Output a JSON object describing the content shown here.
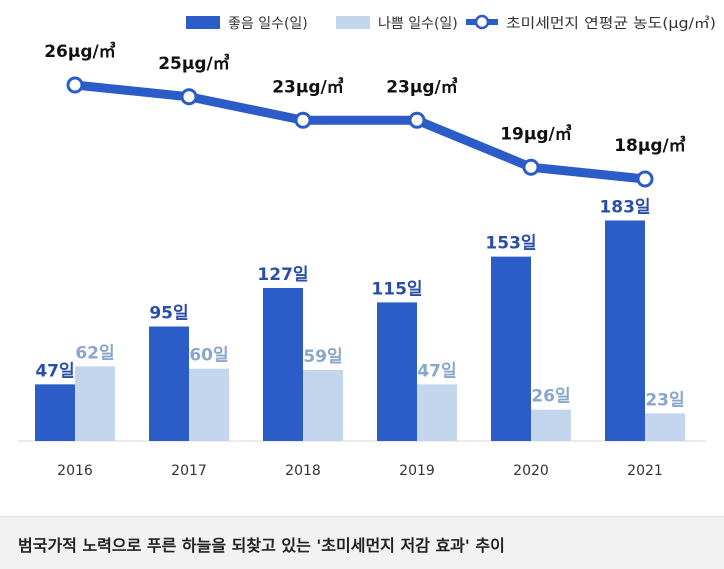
{
  "caption": "범국가적 노력으로 푸른 하늘을 되찾고 있는 '초미세먼지 저감 효과' 추이",
  "legend": {
    "good_label": "좋음 일수(일)",
    "bad_label": "나쁨 일수(일)",
    "line_label": "초미세먼지 연평균 농도(μg/㎥)"
  },
  "colors": {
    "good": "#2b5cc8",
    "bad": "#c3d6ee",
    "line": "#2b5cc8",
    "good_text": "#2b4fa8",
    "bad_text": "#8aa6cc",
    "line_text": "#111111"
  },
  "chart_data": {
    "type": "bar",
    "categories": [
      "2016",
      "2017",
      "2018",
      "2019",
      "2020",
      "2021"
    ],
    "series": [
      {
        "name": "좋음 일수(일)",
        "type": "bar",
        "values": [
          47,
          95,
          127,
          115,
          153,
          183
        ],
        "labels": [
          "47일",
          "95일",
          "127일",
          "115일",
          "153일",
          "183일"
        ]
      },
      {
        "name": "나쁨 일수(일)",
        "type": "bar",
        "values": [
          62,
          60,
          59,
          47,
          26,
          23
        ],
        "labels": [
          "62일",
          "60일",
          "59일",
          "47일",
          "26일",
          "23일"
        ]
      },
      {
        "name": "초미세먼지 연평균 농도(μg/㎥)",
        "type": "line",
        "values": [
          26,
          25,
          23,
          23,
          19,
          18
        ],
        "labels": [
          "26μg/㎥",
          "25μg/㎥",
          "23μg/㎥",
          "23μg/㎥",
          "19μg/㎥",
          "18μg/㎥"
        ]
      }
    ],
    "legend_position": "top-right",
    "grid": false
  }
}
